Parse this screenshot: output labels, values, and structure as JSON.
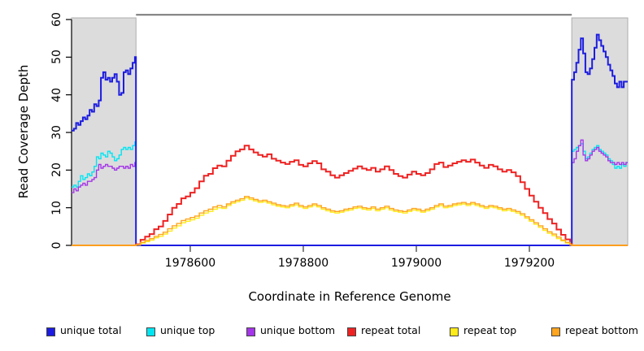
{
  "y_axis": {
    "title": "Read Coverage Depth",
    "ticks": [
      "0",
      "10",
      "20",
      "30",
      "40",
      "50",
      "60"
    ],
    "tick_values": [
      0,
      10,
      20,
      30,
      40,
      50,
      60
    ],
    "range": [
      0,
      60
    ]
  },
  "x_axis": {
    "title": "Coordinate in Reference Genome",
    "ticks": [
      "1978600",
      "1978800",
      "1979000",
      "1979200"
    ],
    "tick_values": [
      1978600,
      1978800,
      1979000,
      1979200
    ],
    "range": [
      1978390,
      1979374
    ]
  },
  "shaded_regions": {
    "color": "#DCDCDC",
    "border_color": "#ADADAD",
    "regions": [
      [
        1978390,
        1978504
      ],
      [
        1979275,
        1979374
      ]
    ]
  },
  "repeat_region_marker": {
    "from": 1978504,
    "to": 1979275,
    "color": "#7F7F7F"
  },
  "legend": {
    "items": [
      {
        "label": "unique total",
        "color": "#1C1CE0"
      },
      {
        "label": "unique top",
        "color": "#00E5F2"
      },
      {
        "label": "unique bottom",
        "color": "#A435E8"
      },
      {
        "label": "repeat total",
        "color": "#EE2222"
      },
      {
        "label": "repeat top",
        "color": "#FFEB1A"
      },
      {
        "label": "repeat bottom",
        "color": "#FFA51F"
      }
    ]
  },
  "chart_data": {
    "type": "line",
    "step": true,
    "xlabel": "Coordinate in Reference Genome",
    "ylabel": "Read Coverage Depth",
    "xlim": [
      1978390,
      1979374
    ],
    "ylim": [
      0,
      60
    ],
    "grid": false,
    "legend_position": "bottom",
    "series": [
      {
        "name": "unique top",
        "color": "#00E5F2",
        "width": 1.4,
        "segments": [
          {
            "x0": 1978390,
            "dx": 4,
            "values": [
              15.5,
              16,
              15.5,
              17,
              18.5,
              17.5,
              18,
              19,
              18.5,
              19.5,
              21,
              23.5,
              23,
              24.5,
              24,
              23.5,
              25,
              24.5,
              23.5,
              22.5,
              23,
              24,
              25.5,
              26,
              25.5,
              26,
              25.5,
              26.5,
              27.5
            ]
          },
          {
            "x0": 1978504,
            "dx": 771,
            "values": [
              0
            ]
          },
          {
            "x0": 1979275,
            "dx": 4,
            "values": [
              25,
              25.5,
              26,
              26.5,
              27,
              25,
              23,
              23.5,
              24.5,
              25.5,
              26,
              26.5,
              25.5,
              25,
              24.5,
              24,
              23,
              22.5,
              21.5,
              20.5,
              21,
              20.5,
              21.5,
              21,
              22
            ]
          }
        ]
      },
      {
        "name": "unique bottom",
        "color": "#A435E8",
        "width": 1.4,
        "segments": [
          {
            "x0": 1978390,
            "dx": 4,
            "values": [
              14,
              15,
              14.5,
              15.5,
              16,
              16.5,
              16,
              17,
              17,
              17.5,
              18,
              20,
              21.5,
              20.5,
              21,
              21.5,
              21,
              21,
              20.5,
              20,
              20.5,
              21,
              21,
              20.5,
              21,
              20.5,
              21.5,
              21,
              22
            ]
          },
          {
            "x0": 1978504,
            "dx": 771,
            "values": [
              0
            ]
          },
          {
            "x0": 1979275,
            "dx": 4,
            "values": [
              22,
              23,
              25,
              26.5,
              28,
              24,
              22.5,
              23,
              24,
              25,
              25.5,
              26,
              25,
              24.5,
              24,
              23.5,
              22.5,
              22,
              22,
              21.5,
              22,
              21.5,
              22,
              21.5,
              22
            ]
          }
        ]
      },
      {
        "name": "unique total",
        "color": "#1C1CE0",
        "width": 2,
        "segments": [
          {
            "x0": 1978390,
            "dx": 4,
            "values": [
              30.5,
              31,
              32.5,
              32,
              33,
              34,
              33.5,
              34.5,
              36,
              35.5,
              37.5,
              37,
              38.5,
              44.5,
              46,
              44,
              44.5,
              43.5,
              44.5,
              45.5,
              43.5,
              40,
              40.5,
              46,
              46.5,
              45.5,
              47,
              48.5,
              50
            ]
          },
          {
            "x0": 1978504,
            "dx": 771,
            "values": [
              0
            ]
          },
          {
            "x0": 1979275,
            "dx": 4,
            "values": [
              44,
              46,
              48.5,
              52,
              55,
              51,
              46,
              45.5,
              47,
              49.5,
              52.5,
              56,
              54.5,
              53,
              51.5,
              50,
              48,
              46.5,
              45,
              43,
              42,
              43.5,
              42,
              43.5,
              43.5
            ]
          }
        ]
      },
      {
        "name": "repeat total",
        "color": "#EE2222",
        "width": 2,
        "segments": [
          {
            "x0": 1978390,
            "dx": 114,
            "values": [
              0
            ]
          },
          {
            "x0": 1978504,
            "dx": 8,
            "values": [
              0.3,
              1.5,
              2.3,
              3,
              4.3,
              5,
              6.5,
              8.2,
              10,
              11,
              12.5,
              13,
              14,
              15.2,
              17,
              18.5,
              19,
              20.5,
              21.2,
              21,
              22.5,
              23.8,
              25,
              25.5,
              26.5,
              25.5,
              24.7,
              24,
              23.6,
              24.2,
              23,
              22.5,
              22,
              21.6,
              22.2,
              22.6,
              21.4,
              21,
              21.8,
              22.4,
              21.8,
              20.2,
              19.6,
              18.6,
              18,
              18.6,
              19.2,
              19.8,
              20.4,
              21,
              20.4,
              20,
              20.6,
              19.6,
              20.2,
              21,
              20,
              19,
              18.4,
              18,
              18.8,
              19.6,
              19,
              18.6,
              19.2,
              20.2,
              21.6,
              22,
              20.8,
              21.2,
              21.8,
              22.2,
              22.6,
              22.2,
              22.8,
              22,
              21.2,
              20.6,
              21.4,
              21,
              20.2,
              19.6,
              20,
              19.4,
              18.4,
              16.8,
              15,
              13.2,
              11.6,
              10,
              8.6,
              7,
              5.8,
              4.2,
              2.8,
              1.6,
              0.4
            ]
          },
          {
            "x0": 1979275,
            "dx": 99,
            "values": [
              0
            ]
          }
        ]
      },
      {
        "name": "repeat top",
        "color": "#FFEB1A",
        "width": 1.4,
        "segments": [
          {
            "x0": 1978390,
            "dx": 114,
            "values": [
              0
            ]
          },
          {
            "x0": 1978504,
            "dx": 8,
            "values": [
              0.1,
              0.6,
              1,
              1.4,
              2,
              2.4,
              3,
              3.8,
              4.6,
              5.2,
              6,
              6.4,
              6.8,
              7.2,
              8,
              8.6,
              9,
              9.6,
              10,
              9.8,
              10.6,
              11.2,
              11.6,
              12,
              12.6,
              12.2,
              11.8,
              11.4,
              11.6,
              11.2,
              10.8,
              10.4,
              10.2,
              10,
              10.4,
              10.8,
              10.2,
              9.8,
              10.2,
              10.6,
              10.2,
              9.6,
              9.2,
              8.8,
              8.6,
              8.8,
              9.2,
              9.4,
              9.8,
              10,
              9.6,
              9.4,
              9.8,
              9.2,
              9.6,
              10,
              9.4,
              9,
              8.8,
              8.6,
              9,
              9.4,
              9.2,
              8.8,
              9.2,
              9.6,
              10.2,
              10.6,
              10,
              10.2,
              10.6,
              10.8,
              11,
              10.6,
              11,
              10.6,
              10.2,
              9.8,
              10.2,
              10,
              9.6,
              9.2,
              9.4,
              9,
              8.6,
              8,
              7.2,
              6.4,
              5.6,
              4.8,
              4,
              3.2,
              2.6,
              1.8,
              1.2,
              0.6,
              0.1
            ]
          },
          {
            "x0": 1979275,
            "dx": 99,
            "values": [
              0
            ]
          }
        ]
      },
      {
        "name": "repeat bottom",
        "color": "#FFA51F",
        "width": 1.4,
        "segments": [
          {
            "x0": 1978390,
            "dx": 114,
            "values": [
              0
            ]
          },
          {
            "x0": 1978504,
            "dx": 8,
            "values": [
              0.2,
              0.8,
              1.3,
              1.8,
              2.4,
              2.9,
              3.5,
              4.4,
              5.2,
              5.8,
              6.6,
              7,
              7.4,
              7.8,
              8.6,
              9.2,
              9.6,
              10.2,
              10.6,
              10.2,
              11,
              11.6,
              12,
              12.4,
              13,
              12.6,
              12.2,
              11.8,
              12,
              11.6,
              11.2,
              10.8,
              10.6,
              10.4,
              10.8,
              11.2,
              10.6,
              10.2,
              10.6,
              11,
              10.6,
              10,
              9.6,
              9.2,
              9,
              9.2,
              9.6,
              9.8,
              10.2,
              10.4,
              10,
              9.8,
              10.2,
              9.6,
              10,
              10.4,
              9.8,
              9.4,
              9.2,
              9,
              9.4,
              9.8,
              9.6,
              9.2,
              9.6,
              10,
              10.6,
              11,
              10.4,
              10.6,
              11,
              11.2,
              11.4,
              11,
              11.4,
              11,
              10.6,
              10.2,
              10.6,
              10.4,
              10,
              9.6,
              9.8,
              9.4,
              9,
              8.4,
              7.6,
              6.8,
              6,
              5.2,
              4.4,
              3.6,
              3,
              2.2,
              1.4,
              0.8,
              0.2
            ]
          },
          {
            "x0": 1979275,
            "dx": 99,
            "values": [
              0
            ]
          }
        ]
      }
    ]
  }
}
